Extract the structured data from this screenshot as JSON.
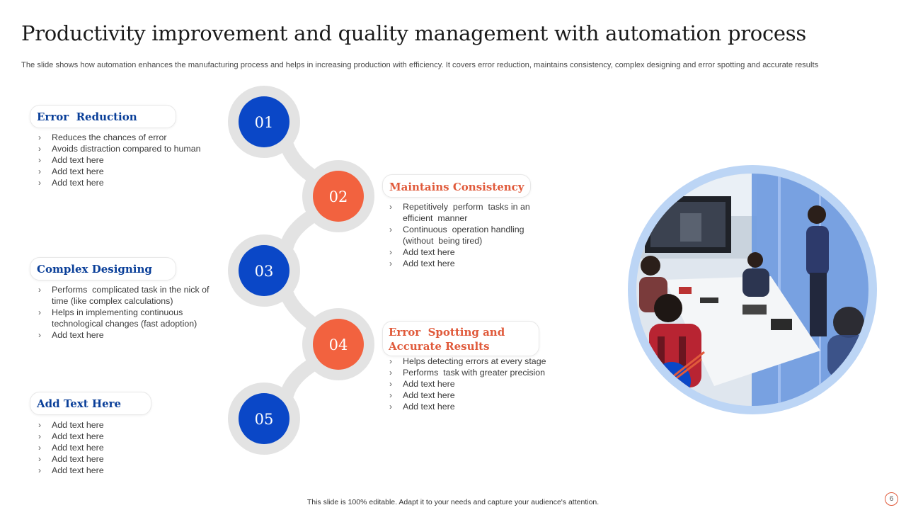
{
  "title": "Productivity improvement and quality management with automation process",
  "subtitle": "The slide shows how automation enhances the manufacturing process and helps in increasing production with efficiency. It covers error reduction, maintains consistency, complex designing and error spotting and accurate results",
  "steps": [
    {
      "number": "01",
      "color": "#0a47c7"
    },
    {
      "number": "02",
      "color": "#f2623f"
    },
    {
      "number": "03",
      "color": "#0a47c7"
    },
    {
      "number": "04",
      "color": "#f2623f"
    },
    {
      "number": "05",
      "color": "#0a47c7"
    }
  ],
  "sections": {
    "error_reduction": {
      "heading": "Error  Reduction",
      "bullets": [
        "Reduces the chances of error",
        "Avoids distraction compared to human",
        "Add text here",
        "Add text here",
        "Add text here"
      ]
    },
    "maintains_consistency": {
      "heading": "Maintains Consistency",
      "bullets": [
        "Repetitively  perform  tasks in an efficient  manner",
        "Continuous  operation handling (without  being tired)",
        "Add text here",
        "Add text here"
      ]
    },
    "complex_designing": {
      "heading": "Complex Designing",
      "bullets": [
        "Performs  complicated task in the nick of time (like complex calculations)",
        "Helps in implementing continuous technological changes (fast adoption)",
        "Add text here"
      ]
    },
    "error_spotting": {
      "heading_line1": "Error  Spotting and",
      "heading_line2": "Accurate Results",
      "bullets": [
        "Helps detecting errors at every stage",
        "Performs  task with greater precision",
        "Add text here",
        "Add text here",
        "Add text here"
      ]
    },
    "add_text_here": {
      "heading": "Add Text Here",
      "bullets": [
        "Add text here",
        "Add text here",
        "Add text here",
        "Add text here",
        "Add text here"
      ]
    }
  },
  "footer": "This slide is 100% editable.  Adapt it to your needs and capture your audience's attention.",
  "page_number": "6",
  "colors": {
    "blue": "#0a47c7",
    "orange": "#f2623f",
    "gray_ring": "#e3e3e3",
    "photo_ring": "#bcd5f5"
  }
}
